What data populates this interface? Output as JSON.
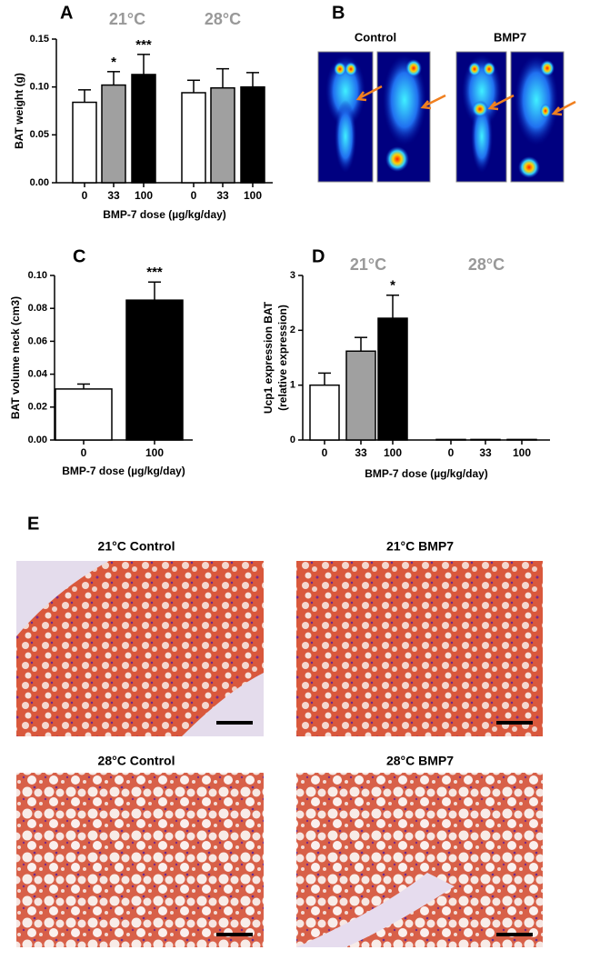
{
  "chart_data": [
    {
      "type": "bar",
      "letter": "A",
      "groups": [
        "21°C",
        "28°C"
      ],
      "categories": [
        "0",
        "33",
        "100",
        "0",
        "33",
        "100"
      ],
      "values": [
        0.084,
        0.102,
        0.113,
        0.094,
        0.099,
        0.1
      ],
      "errors": [
        0.013,
        0.014,
        0.021,
        0.013,
        0.02,
        0.015
      ],
      "colors": [
        "#ffffff",
        "#a0a0a0",
        "#000000",
        "#ffffff",
        "#a0a0a0",
        "#000000"
      ],
      "annotations": [
        null,
        "*",
        "***",
        null,
        null,
        null
      ],
      "xlabel": "BMP-7 dose (µg/kg/day)",
      "ylabel": "BAT weight (g)",
      "ylim": [
        0,
        0.15
      ],
      "yticks": [
        {
          "value": 0,
          "label": "0.00"
        },
        {
          "value": 0.05,
          "label": "0.05"
        },
        {
          "value": 0.1,
          "label": "0.10"
        },
        {
          "value": 0.15,
          "label": "0.15"
        }
      ]
    },
    {
      "type": "bar",
      "letter": "C",
      "categories": [
        "0",
        "100"
      ],
      "values": [
        0.031,
        0.085
      ],
      "errors": [
        0.003,
        0.011
      ],
      "colors": [
        "#ffffff",
        "#000000"
      ],
      "annotations": [
        null,
        "***"
      ],
      "xlabel": "BMP-7 dose (µg/kg/day)",
      "ylabel": "BAT volume neck (cm3)",
      "ylim": [
        0,
        0.1
      ],
      "yticks": [
        {
          "value": 0,
          "label": "0.00"
        },
        {
          "value": 0.02,
          "label": "0.02"
        },
        {
          "value": 0.04,
          "label": "0.04"
        },
        {
          "value": 0.06,
          "label": "0.06"
        },
        {
          "value": 0.08,
          "label": "0.08"
        },
        {
          "value": 0.1,
          "label": "0.10"
        }
      ]
    },
    {
      "type": "bar",
      "letter": "D",
      "groups": [
        "21°C",
        "28°C"
      ],
      "categories": [
        "0",
        "33",
        "100",
        "0",
        "33",
        "100"
      ],
      "values": [
        1.0,
        1.62,
        2.22,
        0.01,
        0.01,
        0.01
      ],
      "errors": [
        0.22,
        0.25,
        0.42,
        null,
        null,
        null
      ],
      "colors": [
        "#ffffff",
        "#a0a0a0",
        "#000000",
        "#ffffff",
        "#a0a0a0",
        "#000000"
      ],
      "annotations": [
        null,
        null,
        "*",
        null,
        null,
        null
      ],
      "xlabel": "BMP-7 dose (µg/kg/day)",
      "ylabel": [
        "Ucp1 expression BAT",
        "(relative expression)"
      ],
      "ylim": [
        0,
        3
      ],
      "yticks": [
        0,
        1,
        2,
        3
      ]
    }
  ],
  "panel_b": {
    "letter": "B",
    "labels": [
      "Control",
      "BMP7"
    ]
  },
  "panel_e": {
    "letter": "E",
    "titles": [
      "21°C Control",
      "21°C BMP7",
      "28°C Control",
      "28°C BMP7"
    ]
  }
}
